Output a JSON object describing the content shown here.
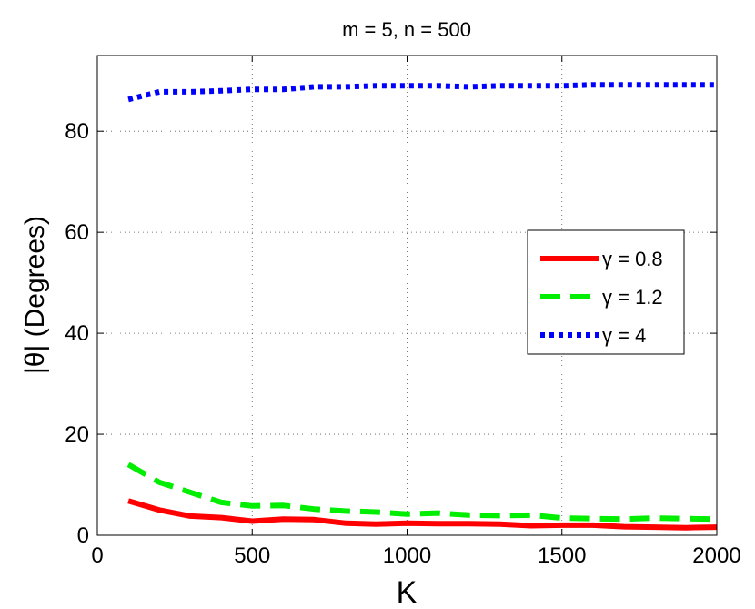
{
  "chart_data": {
    "type": "line",
    "title": "m = 5, n = 500",
    "xlabel": "K",
    "ylabel": "|θ| (Degrees)",
    "xlim": [
      0,
      2000
    ],
    "ylim": [
      0,
      95
    ],
    "xticks": [
      0,
      500,
      1000,
      1500,
      2000
    ],
    "yticks": [
      0,
      20,
      40,
      60,
      80
    ],
    "grid": true,
    "legend_position": "right",
    "x": [
      100,
      200,
      300,
      400,
      500,
      600,
      700,
      800,
      900,
      1000,
      1100,
      1200,
      1300,
      1400,
      1500,
      1600,
      1700,
      1800,
      1900,
      2000
    ],
    "series": [
      {
        "name": "γ = 0.8",
        "color": "#ff0000",
        "style": "solid",
        "values": [
          6.8,
          5.0,
          3.8,
          3.5,
          2.8,
          3.2,
          3.1,
          2.4,
          2.2,
          2.4,
          2.3,
          2.3,
          2.2,
          1.9,
          2.0,
          2.0,
          1.7,
          1.6,
          1.5,
          1.6
        ]
      },
      {
        "name": "γ = 1.2",
        "color": "#00ee00",
        "style": "dashed",
        "values": [
          14.0,
          10.5,
          8.5,
          6.5,
          5.8,
          5.9,
          5.2,
          4.8,
          4.6,
          4.2,
          4.4,
          4.0,
          3.9,
          4.0,
          3.4,
          3.3,
          3.2,
          3.4,
          3.3,
          3.2
        ]
      },
      {
        "name": "γ = 4",
        "color": "#0000ff",
        "style": "dotted",
        "values": [
          86.3,
          87.8,
          87.8,
          88.0,
          88.3,
          88.3,
          88.8,
          88.8,
          89.0,
          89.0,
          89.0,
          88.8,
          89.0,
          89.0,
          89.0,
          89.2,
          89.2,
          89.2,
          89.2,
          89.2
        ]
      }
    ]
  }
}
